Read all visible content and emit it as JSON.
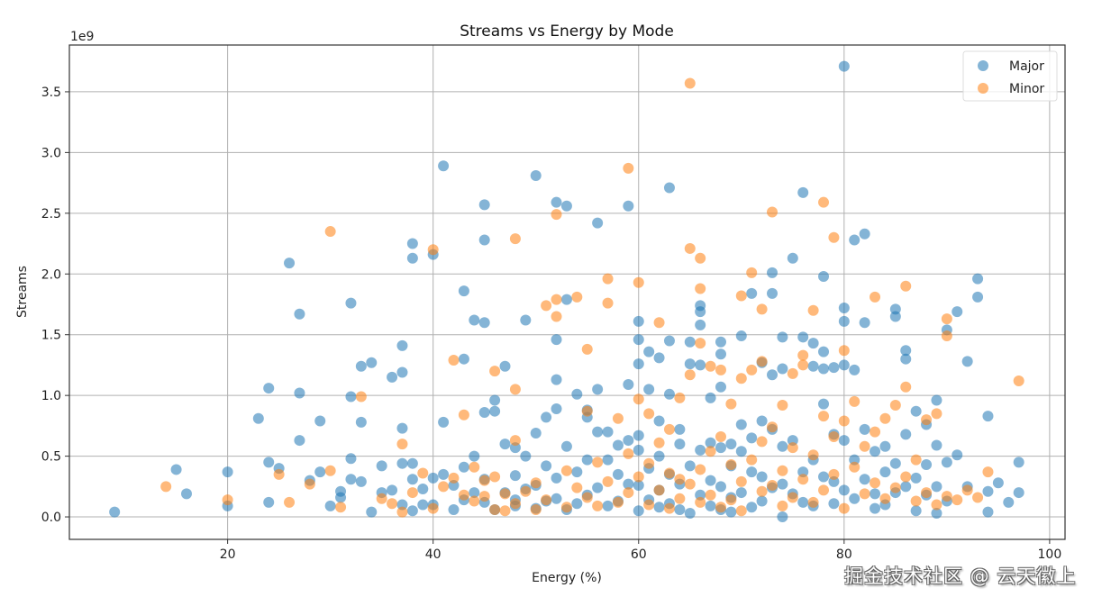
{
  "chart_data": {
    "type": "scatter",
    "title": "Streams vs Energy by Mode",
    "xlabel": "Energy (%)",
    "ylabel": "Streams",
    "y_offset_label": "1e9",
    "xlim": [
      4.6,
      101.5
    ],
    "ylim": [
      -0.185,
      3.885
    ],
    "y_scale_factor": 1000000000,
    "xticks": [
      20,
      40,
      60,
      80,
      100
    ],
    "xtick_labels": [
      "20",
      "40",
      "60",
      "80",
      "100"
    ],
    "yticks": [
      0.0,
      0.5,
      1.0,
      1.5,
      2.0,
      2.5,
      3.0,
      3.5
    ],
    "ytick_labels": [
      "0.0",
      "0.5",
      "1.0",
      "1.5",
      "2.0",
      "2.5",
      "3.0",
      "3.5"
    ],
    "grid": true,
    "legend_position": "top-right",
    "series": [
      {
        "name": "Major",
        "color": "#1f77b4",
        "alpha": 0.55,
        "x": [
          9,
          15,
          16,
          20,
          20,
          23,
          24,
          24,
          24,
          25,
          26,
          27,
          27,
          27,
          28,
          29,
          29,
          30,
          31,
          31,
          32,
          32,
          32,
          32,
          33,
          33,
          33,
          34,
          34,
          35,
          35,
          36,
          36,
          37,
          37,
          37,
          37,
          37,
          38,
          38,
          38,
          38,
          38,
          39,
          39,
          40,
          40,
          40,
          41,
          41,
          41,
          42,
          42,
          43,
          43,
          43,
          43,
          44,
          44,
          44,
          45,
          45,
          45,
          45,
          45,
          45,
          46,
          46,
          46,
          47,
          47,
          47,
          48,
          48,
          48,
          48,
          49,
          49,
          49,
          50,
          50,
          50,
          50,
          51,
          51,
          51,
          52,
          52,
          52,
          52,
          52,
          52,
          53,
          53,
          53,
          53,
          54,
          54,
          54,
          55,
          55,
          55,
          55,
          56,
          56,
          56,
          56,
          57,
          57,
          57,
          58,
          58,
          58,
          59,
          59,
          59,
          59,
          60,
          60,
          60,
          60,
          60,
          60,
          60,
          61,
          61,
          61,
          61,
          62,
          62,
          62,
          62,
          62,
          63,
          63,
          63,
          63,
          63,
          64,
          64,
          64,
          64,
          65,
          65,
          65,
          65,
          66,
          66,
          66,
          66,
          66,
          66,
          67,
          67,
          67,
          67,
          68,
          68,
          68,
          68,
          68,
          68,
          69,
          69,
          69,
          69,
          70,
          70,
          70,
          70,
          71,
          71,
          71,
          71,
          72,
          72,
          72,
          72,
          73,
          73,
          73,
          73,
          73,
          74,
          74,
          74,
          74,
          74,
          75,
          75,
          75,
          76,
          76,
          76,
          76,
          77,
          77,
          77,
          77,
          78,
          78,
          78,
          78,
          78,
          79,
          79,
          79,
          79,
          80,
          80,
          80,
          80,
          80,
          80,
          81,
          81,
          81,
          81,
          82,
          82,
          82,
          82,
          83,
          83,
          83,
          84,
          84,
          84,
          85,
          85,
          85,
          85,
          86,
          86,
          86,
          86,
          87,
          87,
          87,
          88,
          88,
          88,
          89,
          89,
          89,
          89,
          90,
          90,
          90,
          91,
          91,
          92,
          92,
          93,
          93,
          94,
          94,
          94,
          95,
          96,
          97,
          97
        ],
        "y": [
          0.04,
          0.39,
          0.19,
          0.37,
          0.09,
          0.81,
          1.06,
          0.45,
          0.12,
          0.4,
          2.09,
          1.67,
          1.02,
          0.63,
          0.3,
          0.79,
          0.37,
          0.09,
          0.21,
          0.16,
          1.76,
          0.99,
          0.48,
          0.31,
          1.24,
          0.78,
          0.29,
          1.27,
          0.04,
          0.42,
          0.2,
          1.15,
          0.22,
          1.41,
          1.19,
          0.73,
          0.44,
          0.1,
          2.25,
          2.13,
          0.44,
          0.31,
          0.05,
          0.1,
          0.23,
          2.16,
          0.32,
          0.1,
          2.89,
          0.78,
          0.35,
          0.06,
          0.26,
          1.86,
          1.3,
          0.41,
          0.14,
          1.62,
          0.5,
          0.2,
          2.57,
          2.28,
          1.6,
          0.86,
          0.31,
          0.12,
          0.96,
          0.87,
          0.06,
          1.24,
          0.6,
          0.2,
          0.57,
          0.34,
          0.14,
          0.09,
          1.62,
          0.5,
          0.23,
          2.81,
          0.69,
          0.26,
          0.07,
          0.82,
          0.42,
          0.13,
          2.59,
          1.46,
          1.13,
          0.89,
          0.32,
          0.15,
          2.56,
          1.79,
          0.58,
          0.06,
          1.01,
          0.37,
          0.11,
          0.88,
          0.82,
          0.47,
          0.18,
          2.42,
          1.05,
          0.7,
          0.24,
          0.7,
          0.47,
          0.09,
          0.59,
          0.35,
          0.13,
          2.56,
          1.09,
          0.63,
          0.27,
          1.61,
          1.46,
          1.26,
          0.67,
          0.55,
          0.26,
          0.05,
          1.36,
          1.05,
          0.4,
          0.14,
          1.31,
          0.79,
          0.5,
          0.22,
          0.08,
          2.71,
          1.45,
          1.01,
          0.35,
          0.11,
          0.72,
          0.6,
          0.27,
          0.06,
          1.44,
          1.26,
          0.42,
          0.03,
          1.74,
          1.69,
          1.58,
          1.25,
          0.55,
          0.18,
          0.98,
          0.61,
          0.3,
          0.09,
          1.44,
          1.34,
          1.07,
          0.57,
          0.25,
          0.06,
          0.6,
          0.42,
          0.16,
          0.04,
          1.49,
          0.76,
          0.54,
          0.2,
          1.84,
          0.65,
          0.37,
          0.08,
          1.27,
          0.79,
          0.33,
          0.13,
          2.01,
          1.84,
          1.17,
          0.72,
          0.24,
          1.48,
          1.22,
          0.58,
          0.27,
          0.0,
          2.13,
          0.63,
          0.19,
          2.67,
          1.48,
          0.37,
          0.12,
          1.43,
          1.24,
          0.47,
          0.09,
          1.98,
          1.36,
          1.22,
          0.93,
          0.33,
          1.23,
          0.68,
          0.29,
          0.11,
          3.71,
          1.72,
          1.61,
          1.25,
          0.63,
          0.22,
          2.28,
          1.21,
          0.47,
          0.15,
          2.33,
          1.6,
          0.72,
          0.31,
          0.54,
          0.19,
          0.07,
          0.58,
          0.37,
          0.1,
          1.71,
          1.65,
          0.44,
          0.2,
          1.37,
          1.3,
          0.68,
          0.25,
          0.87,
          0.32,
          0.05,
          0.76,
          0.43,
          0.18,
          0.96,
          0.59,
          0.25,
          0.03,
          1.54,
          0.45,
          0.13,
          1.69,
          0.51,
          1.28,
          0.25,
          1.96,
          1.81,
          0.83,
          0.21,
          0.04,
          0.28,
          0.12,
          0.45,
          0.2
        ]
      },
      {
        "name": "Minor",
        "color": "#ff7f0e",
        "alpha": 0.55,
        "x": [
          14,
          20,
          25,
          26,
          28,
          30,
          30,
          31,
          33,
          35,
          36,
          37,
          37,
          38,
          39,
          40,
          40,
          41,
          42,
          42,
          43,
          43,
          44,
          44,
          45,
          45,
          46,
          46,
          46,
          47,
          47,
          48,
          48,
          48,
          48,
          49,
          50,
          50,
          51,
          51,
          52,
          52,
          52,
          53,
          53,
          54,
          54,
          55,
          55,
          55,
          56,
          56,
          57,
          57,
          57,
          58,
          58,
          59,
          59,
          59,
          60,
          60,
          60,
          61,
          61,
          61,
          62,
          62,
          62,
          63,
          63,
          63,
          64,
          64,
          64,
          65,
          65,
          65,
          65,
          66,
          66,
          66,
          66,
          66,
          67,
          67,
          67,
          68,
          68,
          68,
          69,
          69,
          69,
          70,
          70,
          70,
          70,
          71,
          71,
          71,
          72,
          72,
          72,
          72,
          73,
          73,
          73,
          74,
          74,
          74,
          75,
          75,
          75,
          76,
          76,
          76,
          77,
          77,
          77,
          78,
          78,
          78,
          79,
          79,
          79,
          80,
          80,
          80,
          81,
          81,
          82,
          82,
          83,
          83,
          83,
          84,
          84,
          85,
          85,
          86,
          86,
          86,
          87,
          87,
          88,
          88,
          89,
          89,
          90,
          90,
          90,
          91,
          92,
          93,
          94,
          97
        ],
        "y": [
          0.25,
          0.14,
          0.35,
          0.12,
          0.27,
          2.35,
          0.38,
          0.08,
          0.99,
          0.15,
          0.11,
          0.6,
          0.04,
          0.2,
          0.36,
          2.2,
          0.07,
          0.25,
          1.29,
          0.32,
          0.84,
          0.18,
          0.41,
          0.13,
          0.3,
          0.17,
          1.2,
          0.33,
          0.06,
          0.19,
          0.05,
          2.29,
          1.05,
          0.63,
          0.11,
          0.21,
          0.28,
          0.06,
          1.74,
          0.14,
          2.49,
          1.79,
          1.65,
          0.38,
          0.08,
          1.81,
          0.24,
          1.38,
          0.87,
          0.16,
          0.45,
          0.09,
          1.96,
          1.76,
          0.29,
          0.81,
          0.12,
          2.87,
          0.52,
          0.2,
          1.93,
          0.97,
          0.33,
          0.85,
          0.44,
          0.1,
          1.6,
          0.61,
          0.22,
          0.72,
          0.36,
          0.07,
          0.98,
          0.31,
          0.15,
          3.57,
          2.21,
          1.17,
          0.27,
          2.13,
          1.88,
          1.43,
          0.39,
          0.12,
          1.24,
          0.54,
          0.18,
          1.21,
          0.66,
          0.08,
          0.93,
          0.43,
          0.14,
          1.82,
          1.14,
          0.29,
          0.05,
          2.01,
          1.21,
          0.47,
          1.71,
          1.28,
          0.62,
          0.21,
          2.51,
          0.74,
          0.26,
          0.92,
          0.38,
          0.09,
          1.18,
          0.57,
          0.16,
          1.33,
          1.25,
          0.31,
          1.7,
          0.51,
          0.12,
          2.59,
          0.83,
          0.22,
          2.3,
          0.66,
          0.35,
          1.37,
          0.79,
          0.07,
          0.95,
          0.41,
          0.58,
          0.19,
          1.81,
          0.7,
          0.28,
          0.81,
          0.15,
          0.92,
          0.24,
          1.9,
          1.07,
          0.33,
          0.47,
          0.13,
          0.8,
          0.2,
          0.85,
          0.1,
          1.63,
          1.49,
          0.17,
          0.14,
          0.22,
          0.16,
          0.37,
          1.12
        ]
      }
    ]
  },
  "watermark": "掘金技术社区 @ 云天徽上"
}
